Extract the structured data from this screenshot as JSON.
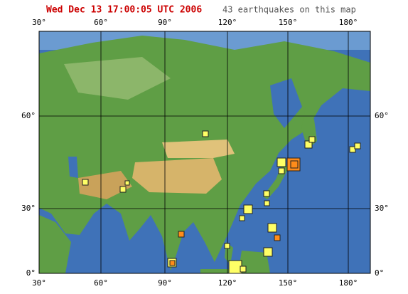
{
  "header": {
    "timestamp": "Wed Dec 13 17:00:05 UTC 2006",
    "count": "43 earthquakes on this map"
  },
  "grid": {
    "longitudes": [
      "30°",
      "60°",
      "90°",
      "120°",
      "150°",
      "180°"
    ],
    "latitudes": [
      "60°",
      "30°",
      "0°"
    ]
  }
}
